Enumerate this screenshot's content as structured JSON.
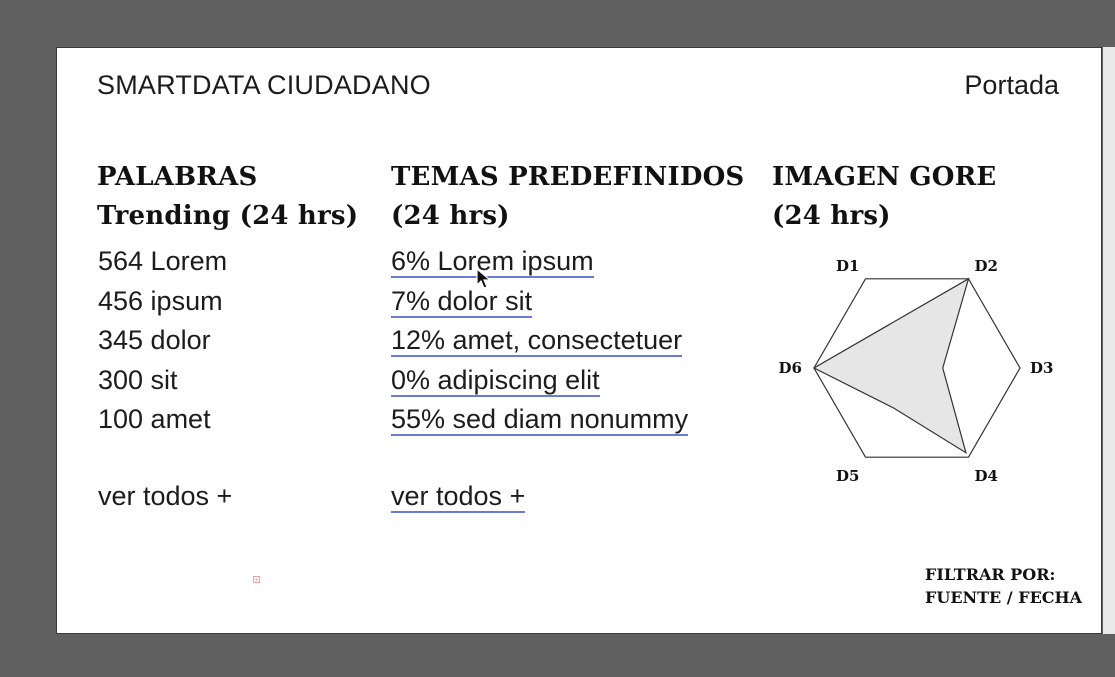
{
  "header": {
    "app_title": "SMARTDATA CIUDADANO",
    "page_link": "Portada"
  },
  "columns": {
    "palabras": {
      "title_line1": "PALABRAS",
      "title_line2": "Trending (24 hrs)",
      "items": [
        "564 Lorem",
        "456 ipsum",
        "345 dolor",
        "300 sit",
        "100 amet"
      ],
      "more_label": "ver todos +"
    },
    "temas": {
      "title_line1": "TEMAS PREDEFINIDOS",
      "title_line2": "(24 hrs)",
      "items": [
        "6% Lorem ipsum",
        "7% dolor sit",
        "12% amet, consectetuer",
        "0% adipiscing elit",
        "55% sed diam nonummy"
      ],
      "more_label": "ver todos +"
    },
    "imagen": {
      "title_line1": "IMAGEN GORE",
      "title_line2": "(24 hrs)"
    }
  },
  "chart_data": {
    "type": "radar",
    "categories": [
      "D1",
      "D2",
      "D3",
      "D4",
      "D5",
      "D6"
    ],
    "values": [
      0.5,
      1.0,
      0.25,
      0.95,
      0.45,
      1.0
    ],
    "range": [
      0,
      1
    ],
    "grid": false,
    "fill_color": "#e6e6e6",
    "line_color": "#333333"
  },
  "filter": {
    "line1": "FILTRAR POR:",
    "line2": "FUENTE / FECHA"
  },
  "colors": {
    "background": "#606060",
    "sheet": "#ffffff",
    "link_underline": "#6a7bd6"
  }
}
